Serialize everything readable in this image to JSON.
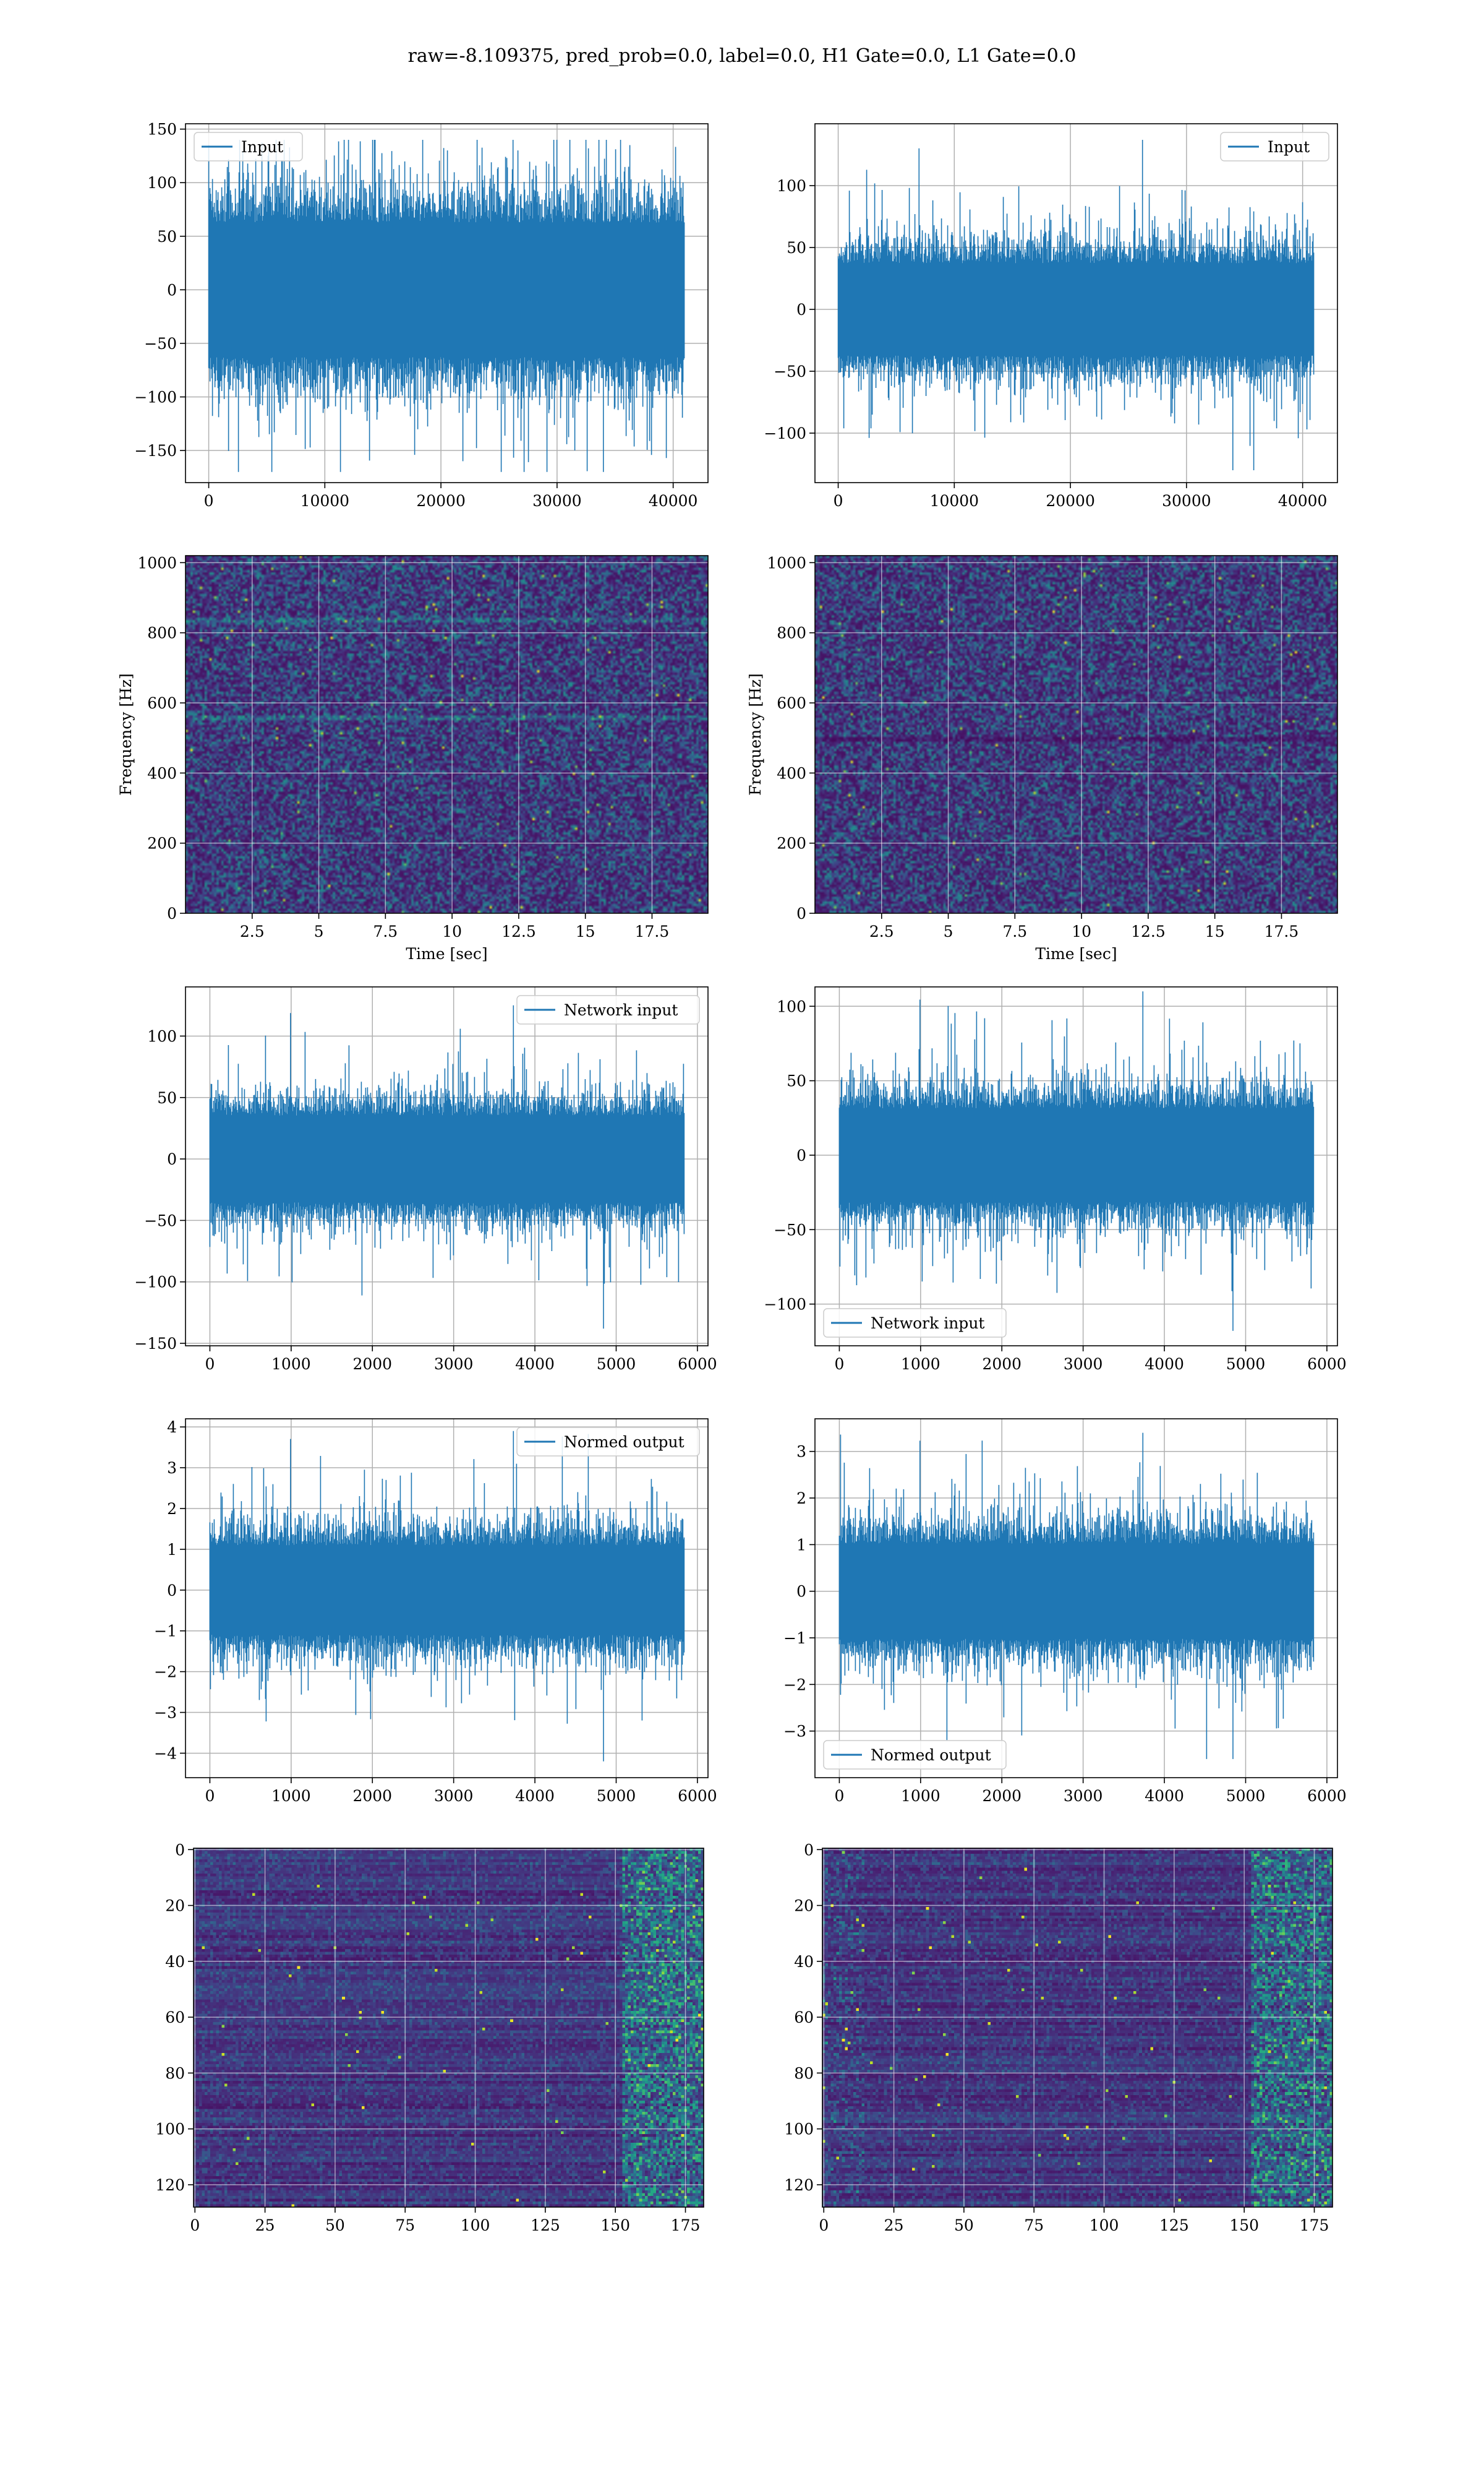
{
  "figure": {
    "suptitle": "raw=-8.109375, pred_prob=0.0, label=0.0, H1 Gate=0.0, L1 Gate=0.0"
  },
  "colors": {
    "line": "#1f77b4",
    "viridis_low": "#440154",
    "viridis_high": "#fde725",
    "grid": "#b0b0b0"
  },
  "chart_data": [
    {
      "id": "input-left",
      "type": "line",
      "series": [
        {
          "name": "Input",
          "n": 40960,
          "amplitude_envelope": [
            -170,
            140
          ],
          "typical_band": [
            -80,
            80
          ]
        }
      ],
      "xlim": [
        -2000,
        43000
      ],
      "ylim": [
        -180,
        155
      ],
      "xticks": [
        0,
        10000,
        20000,
        30000,
        40000
      ],
      "yticks": [
        -150,
        -100,
        -50,
        0,
        50,
        100,
        150
      ],
      "xlabel": "",
      "ylabel": "",
      "legend": "upper left",
      "grid": true
    },
    {
      "id": "input-right",
      "type": "line",
      "series": [
        {
          "name": "Input",
          "n": 40960,
          "amplitude_envelope": [
            -130,
            137
          ],
          "typical_band": [
            -50,
            45
          ]
        }
      ],
      "xlim": [
        -2000,
        43000
      ],
      "ylim": [
        -140,
        150
      ],
      "xticks": [
        0,
        10000,
        20000,
        30000,
        40000
      ],
      "yticks": [
        -100,
        -50,
        0,
        50,
        100
      ],
      "xlabel": "",
      "ylabel": "",
      "legend": "upper right",
      "grid": true
    },
    {
      "id": "spectrogram-left",
      "type": "heatmap",
      "colormap": "viridis",
      "xlim": [
        0,
        19.6
      ],
      "ylim": [
        0,
        1020
      ],
      "xticks": [
        2.5,
        5.0,
        7.5,
        10.0,
        12.5,
        15.0,
        17.5
      ],
      "yticks": [
        0,
        200,
        400,
        600,
        800,
        1000
      ],
      "xlabel": "Time [sec]",
      "ylabel": "Frequency [Hz]",
      "grid": true,
      "bright_bands_hz": [
        840,
        560
      ]
    },
    {
      "id": "spectrogram-right",
      "type": "heatmap",
      "colormap": "viridis",
      "xlim": [
        0,
        19.6
      ],
      "ylim": [
        0,
        1020
      ],
      "xticks": [
        2.5,
        5.0,
        7.5,
        10.0,
        12.5,
        15.0,
        17.5
      ],
      "yticks": [
        0,
        200,
        400,
        600,
        800,
        1000
      ],
      "xlabel": "Time [sec]",
      "ylabel": "Frequency [Hz]",
      "grid": true,
      "dark_bands_hz": [
        500
      ]
    },
    {
      "id": "network-input-left",
      "type": "line",
      "series": [
        {
          "name": "Network input",
          "n": 5840,
          "amplitude_envelope": [
            -138,
            125
          ],
          "typical_band": [
            -45,
            45
          ]
        }
      ],
      "xlim": [
        -300,
        6130
      ],
      "ylim": [
        -152,
        140
      ],
      "xticks": [
        0,
        1000,
        2000,
        3000,
        4000,
        5000,
        6000
      ],
      "yticks": [
        -150,
        -100,
        -50,
        0,
        50,
        100
      ],
      "xlabel": "",
      "ylabel": "",
      "legend": "upper right",
      "grid": true
    },
    {
      "id": "network-input-right",
      "type": "line",
      "series": [
        {
          "name": "Network input",
          "n": 5840,
          "amplitude_envelope": [
            -118,
            110
          ],
          "typical_band": [
            -40,
            40
          ]
        }
      ],
      "xlim": [
        -300,
        6130
      ],
      "ylim": [
        -128,
        113
      ],
      "xticks": [
        0,
        1000,
        2000,
        3000,
        4000,
        5000,
        6000
      ],
      "yticks": [
        -100,
        -50,
        0,
        50,
        100
      ],
      "xlabel": "",
      "ylabel": "",
      "legend": "lower left",
      "grid": true
    },
    {
      "id": "normed-output-left",
      "type": "line",
      "series": [
        {
          "name": "Normed output",
          "n": 5840,
          "amplitude_envelope": [
            -4.2,
            3.9
          ],
          "typical_band": [
            -1.4,
            1.4
          ]
        }
      ],
      "xlim": [
        -300,
        6130
      ],
      "ylim": [
        -4.6,
        4.2
      ],
      "xticks": [
        0,
        1000,
        2000,
        3000,
        4000,
        5000,
        6000
      ],
      "yticks": [
        -4,
        -3,
        -2,
        -1,
        0,
        1,
        2,
        3,
        4
      ],
      "xlabel": "",
      "ylabel": "",
      "legend": "upper right",
      "grid": true
    },
    {
      "id": "normed-output-right",
      "type": "line",
      "series": [
        {
          "name": "Normed output",
          "n": 5840,
          "amplitude_envelope": [
            -3.6,
            3.4
          ],
          "typical_band": [
            -1.3,
            1.3
          ]
        }
      ],
      "xlim": [
        -300,
        6130
      ],
      "ylim": [
        -4.0,
        3.7
      ],
      "xticks": [
        0,
        1000,
        2000,
        3000,
        4000,
        5000,
        6000
      ],
      "yticks": [
        -3,
        -2,
        -1,
        0,
        1,
        2,
        3
      ],
      "xlabel": "",
      "ylabel": "",
      "legend": "lower left",
      "grid": true
    },
    {
      "id": "feature-map-left",
      "type": "heatmap",
      "colormap": "viridis",
      "xlim": [
        -0.5,
        181.5
      ],
      "ylim": [
        128,
        -0.5
      ],
      "xticks": [
        0,
        25,
        50,
        75,
        100,
        125,
        150,
        175
      ],
      "yticks": [
        0,
        20,
        40,
        60,
        80,
        100,
        120
      ],
      "xlabel": "",
      "ylabel": "",
      "grid": true,
      "rows": 128,
      "cols": 182
    },
    {
      "id": "feature-map-right",
      "type": "heatmap",
      "colormap": "viridis",
      "xlim": [
        -0.5,
        181.5
      ],
      "ylim": [
        128,
        -0.5
      ],
      "xticks": [
        0,
        25,
        50,
        75,
        100,
        125,
        150,
        175
      ],
      "yticks": [
        0,
        20,
        40,
        60,
        80,
        100,
        120
      ],
      "xlabel": "",
      "ylabel": "",
      "grid": true,
      "rows": 128,
      "cols": 182
    }
  ]
}
